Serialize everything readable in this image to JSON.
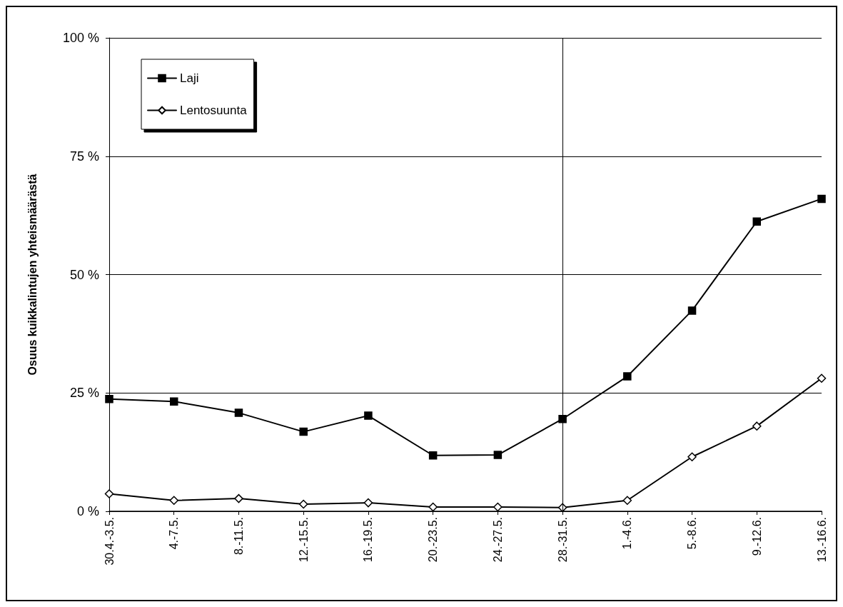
{
  "chart_data": {
    "type": "line",
    "ylabel": "Osuus kuikkalintujen yhteismäärästä",
    "categories": [
      "30.4.-3.5.",
      "4.-7.5.",
      "8.-11.5.",
      "12.-15.5.",
      "16.-19.5.",
      "20.-23.5.",
      "24.-27.5.",
      "28.-31.5.",
      "1.-4.6.",
      "5.-8.6.",
      "9.-12.6.",
      "13.-16.6."
    ],
    "series": [
      {
        "name": "Laji",
        "color": "#000000",
        "marker": "square",
        "values": [
          23.7,
          23.2,
          20.8,
          16.8,
          20.2,
          11.8,
          11.9,
          19.5,
          28.5,
          42.4,
          61.2,
          66.0
        ]
      },
      {
        "name": "Lentosuunta",
        "color": "#000000",
        "marker": "diamond",
        "values": [
          3.7,
          2.3,
          2.7,
          1.5,
          1.8,
          0.9,
          0.9,
          0.8,
          2.3,
          11.5,
          18.0,
          28.1
        ]
      }
    ],
    "ylim": [
      0,
      100
    ],
    "yticks": [
      {
        "value": 0,
        "label": "0 %"
      },
      {
        "value": 25,
        "label": "25 %"
      },
      {
        "value": 50,
        "label": "50 %"
      },
      {
        "value": 75,
        "label": "75 %"
      },
      {
        "value": 100,
        "label": "100 %"
      }
    ],
    "ref_lines": [
      {
        "axis": "x",
        "value": "28.-31.5.",
        "color": "#000000"
      }
    ],
    "grid": "y",
    "legend": "top left",
    "line_style": "solid"
  }
}
